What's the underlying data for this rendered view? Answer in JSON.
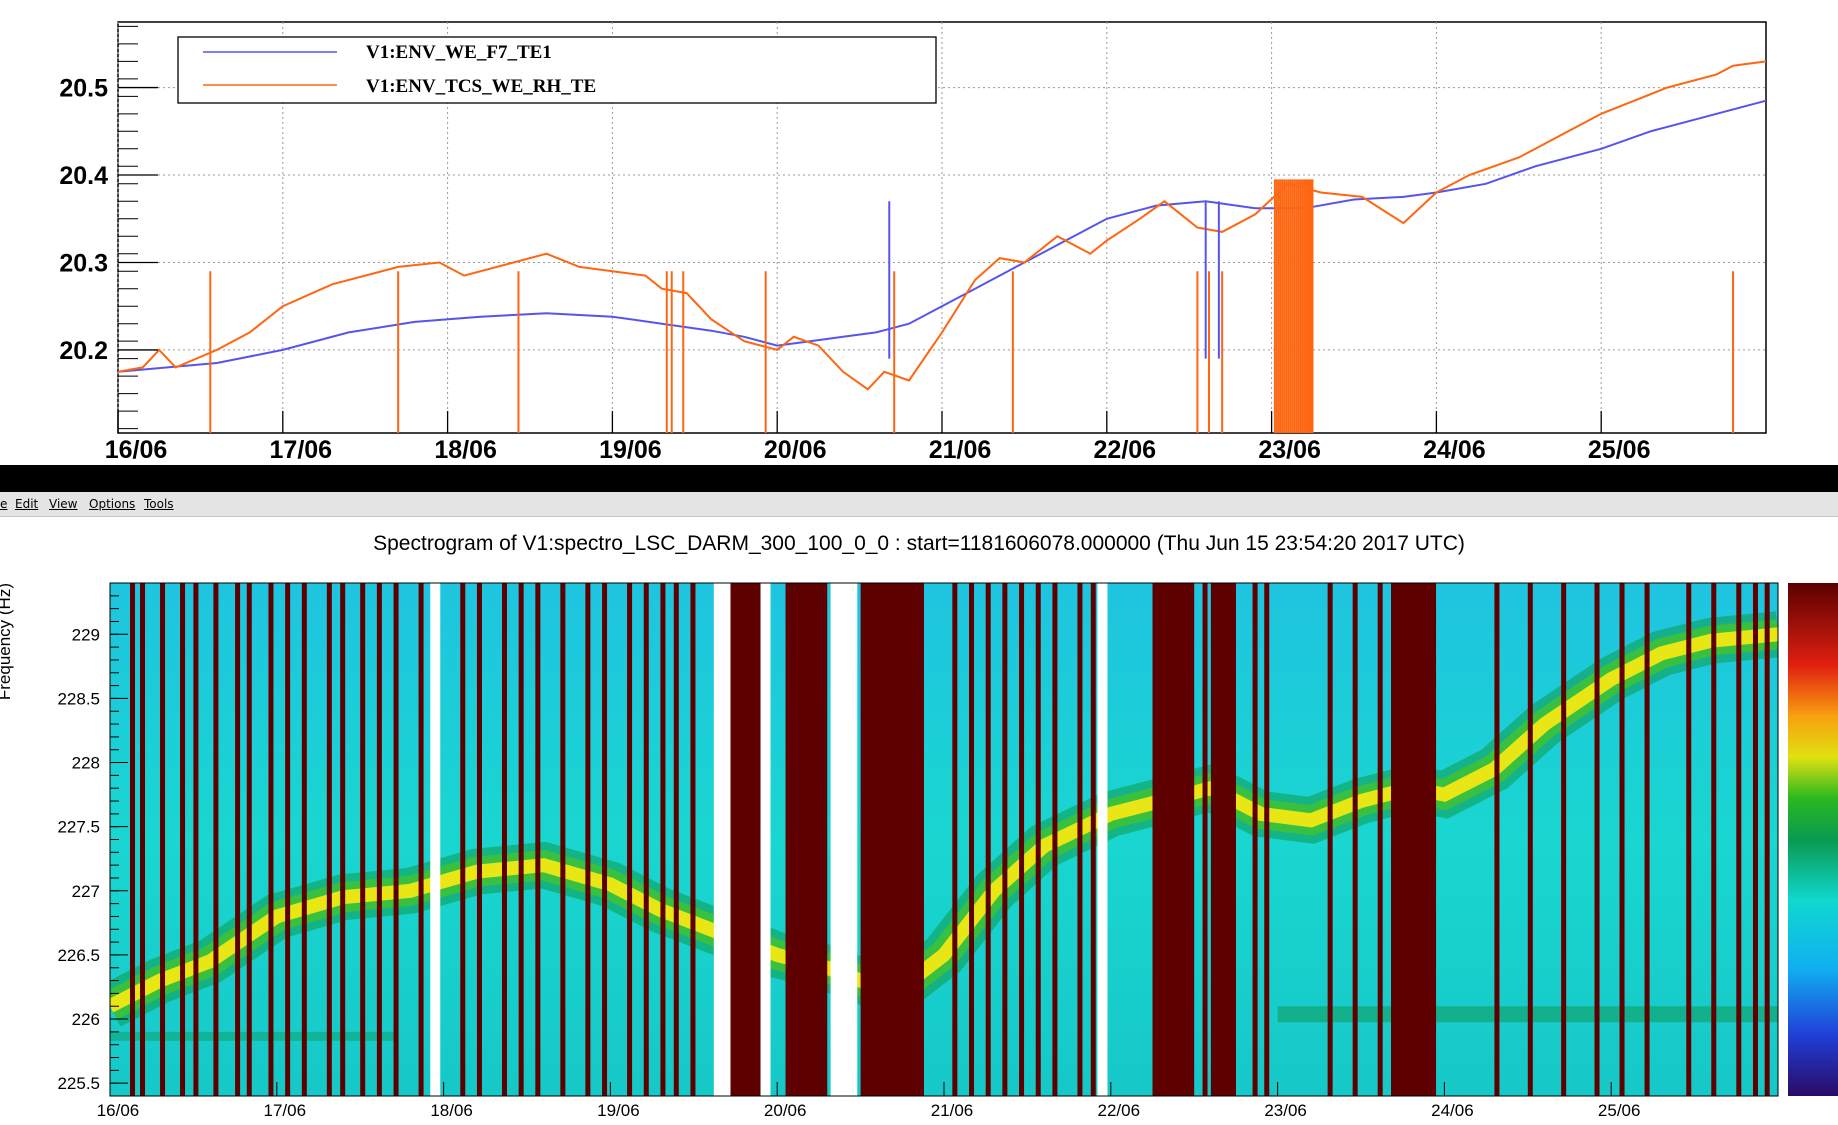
{
  "menubar": {
    "items": [
      "e",
      "Edit",
      "View",
      "Options",
      "Tools"
    ]
  },
  "chart_data": [
    {
      "type": "line",
      "title": "",
      "xlabel": "",
      "ylabel": "",
      "x_tick_labels": [
        "16/06",
        "17/06",
        "18/06",
        "19/06",
        "20/06",
        "21/06",
        "22/06",
        "23/06",
        "24/06",
        "25/06"
      ],
      "y_tick_labels": [
        "20.2",
        "20.3",
        "20.4",
        "20.5"
      ],
      "xlim_days": [
        16.0,
        26.0
      ],
      "ylim": [
        20.105,
        20.575
      ],
      "grid": true,
      "legend_position": "top-left",
      "series": [
        {
          "name": "V1:ENV_WE_F7_TE1",
          "color": "#5555ee",
          "x": [
            16.0,
            16.3,
            16.6,
            17.0,
            17.4,
            17.8,
            18.2,
            18.6,
            19.0,
            19.3,
            19.6,
            19.8,
            20.0,
            20.2,
            20.4,
            20.6,
            20.8,
            21.0,
            21.2,
            21.4,
            21.6,
            21.8,
            22.0,
            22.3,
            22.6,
            22.9,
            23.2,
            23.5,
            23.8,
            24.0,
            24.3,
            24.6,
            25.0,
            25.3,
            25.6,
            26.0
          ],
          "y": [
            20.175,
            20.18,
            20.185,
            20.2,
            20.22,
            20.232,
            20.238,
            20.242,
            20.238,
            20.23,
            20.222,
            20.215,
            20.205,
            20.21,
            20.215,
            20.22,
            20.23,
            20.25,
            20.27,
            20.29,
            20.31,
            20.33,
            20.35,
            20.365,
            20.37,
            20.362,
            20.362,
            20.372,
            20.375,
            20.38,
            20.39,
            20.41,
            20.43,
            20.45,
            20.465,
            20.485
          ]
        },
        {
          "name": "V1:ENV_TCS_WE_RH_TE",
          "color": "#ff6611",
          "x": [
            16.0,
            16.15,
            16.25,
            16.35,
            16.6,
            16.8,
            17.0,
            17.3,
            17.7,
            17.95,
            18.1,
            18.4,
            18.6,
            18.8,
            19.0,
            19.2,
            19.3,
            19.45,
            19.6,
            19.8,
            20.0,
            20.1,
            20.25,
            20.4,
            20.55,
            20.65,
            20.8,
            21.0,
            21.2,
            21.35,
            21.5,
            21.7,
            21.9,
            22.0,
            22.2,
            22.35,
            22.55,
            22.7,
            22.9,
            23.1,
            23.3,
            23.55,
            23.8,
            24.0,
            24.2,
            24.5,
            24.8,
            25.0,
            25.2,
            25.4,
            25.7,
            25.8,
            26.0
          ],
          "y": [
            20.175,
            20.18,
            20.2,
            20.18,
            20.2,
            20.22,
            20.25,
            20.275,
            20.295,
            20.3,
            20.285,
            20.3,
            20.31,
            20.295,
            20.29,
            20.285,
            20.27,
            20.265,
            20.235,
            20.21,
            20.2,
            20.215,
            20.205,
            20.175,
            20.155,
            20.175,
            20.165,
            20.22,
            20.28,
            20.305,
            20.3,
            20.33,
            20.31,
            20.325,
            20.35,
            20.37,
            20.34,
            20.335,
            20.355,
            20.39,
            20.38,
            20.375,
            20.345,
            20.38,
            20.4,
            20.42,
            20.45,
            20.47,
            20.485,
            20.5,
            20.515,
            20.525,
            20.53
          ]
        }
      ]
    },
    {
      "type": "heatmap",
      "title": "Spectrogram of V1:spectro_LSC_DARM_300_100_0_0 : start=1181606078.000000 (Thu Jun 15 23:54:20 2017 UTC)",
      "xlabel": "",
      "ylabel": "Frequency (Hz)",
      "x_tick_labels": [
        "16/06",
        "17/06",
        "18/06",
        "19/06",
        "20/06",
        "21/06",
        "22/06",
        "23/06",
        "24/06",
        "25/06"
      ],
      "y_tick_labels": [
        "225.5",
        "226",
        "226.5",
        "227",
        "227.5",
        "228",
        "228.5",
        "229"
      ],
      "xlim_days": [
        16.0,
        26.0
      ],
      "ylim": [
        225.4,
        229.4
      ],
      "colorscale": "rainbow (purple-blue-cyan-green-yellow-red-darkred)",
      "line_track": {
        "x": [
          16.0,
          16.3,
          16.6,
          17.0,
          17.4,
          17.8,
          18.2,
          18.6,
          19.0,
          19.3,
          19.6,
          20.0,
          20.3,
          20.7,
          21.0,
          21.3,
          21.6,
          22.0,
          22.3,
          22.6,
          22.9,
          23.2,
          23.5,
          23.8,
          24.0,
          24.3,
          24.6,
          25.0,
          25.3,
          25.6,
          26.0
        ],
        "y": [
          226.1,
          226.3,
          226.45,
          226.8,
          226.95,
          227.0,
          227.15,
          227.2,
          227.05,
          226.85,
          226.7,
          226.5,
          226.4,
          226.2,
          226.5,
          227.0,
          227.35,
          227.6,
          227.7,
          227.8,
          227.6,
          227.55,
          227.7,
          227.8,
          227.75,
          227.95,
          228.3,
          228.65,
          228.85,
          228.95,
          229.0
        ]
      }
    }
  ]
}
